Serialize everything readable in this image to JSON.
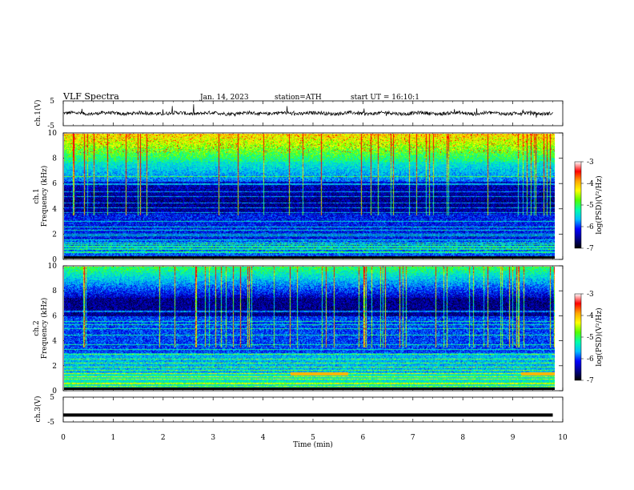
{
  "header": {
    "title": "VLF Spectra",
    "date": "Jan. 14, 2023",
    "station": "station=ATH",
    "start": "start UT = 16:10:1"
  },
  "chart_data": [
    {
      "type": "line",
      "ylabel": "ch.1(V)",
      "yticks": [
        "5",
        "-5"
      ],
      "ylim": [
        -5,
        5
      ],
      "x_range_min": [
        0,
        9.8
      ],
      "baseline": 0,
      "noise_amplitude": 1,
      "line_color": "#000000"
    },
    {
      "type": "heatmap",
      "ylabel_top": "ch.1",
      "ylabel": "Frequency (kHz)",
      "yticks": [
        "0",
        "2",
        "4",
        "6",
        "8",
        "10"
      ],
      "ylim": [
        0,
        10
      ],
      "x_range_min": [
        0,
        9.8
      ],
      "colorbar": {
        "label": "log(PSD)(V²/Hz)",
        "ticks": [
          "-3",
          "-4",
          "-5",
          "-6",
          "-7"
        ],
        "range": [
          -7,
          -3
        ],
        "colors": [
          "#000000",
          "#00008b",
          "#0000ff",
          "#00bfff",
          "#00ffaa",
          "#55ff00",
          "#ffff00",
          "#ffa500",
          "#ff0000",
          "#ffffff"
        ]
      }
    },
    {
      "type": "heatmap",
      "ylabel_top": "ch.2",
      "ylabel": "Frequency (kHz)",
      "yticks": [
        "0",
        "2",
        "4",
        "6",
        "8",
        "10"
      ],
      "ylim": [
        0,
        10
      ],
      "x_range_min": [
        0,
        9.8
      ],
      "colorbar": {
        "label": "log(PSD)(V²/Hz)",
        "ticks": [
          "-3",
          "-4",
          "-5",
          "-6",
          "-7"
        ],
        "range": [
          -7,
          -3
        ]
      }
    },
    {
      "type": "line",
      "ylabel": "ch.3(V)",
      "yticks": [
        "5",
        "-5"
      ],
      "ylim": [
        -5,
        5
      ],
      "x_range_min": [
        0,
        9.8
      ],
      "baseline": -2.2,
      "line_color": "#000000"
    }
  ],
  "xaxis": {
    "label": "Time (min)",
    "ticks": [
      "0",
      "1",
      "2",
      "3",
      "4",
      "5",
      "6",
      "7",
      "8",
      "9",
      "10"
    ],
    "range": [
      0,
      10
    ]
  }
}
